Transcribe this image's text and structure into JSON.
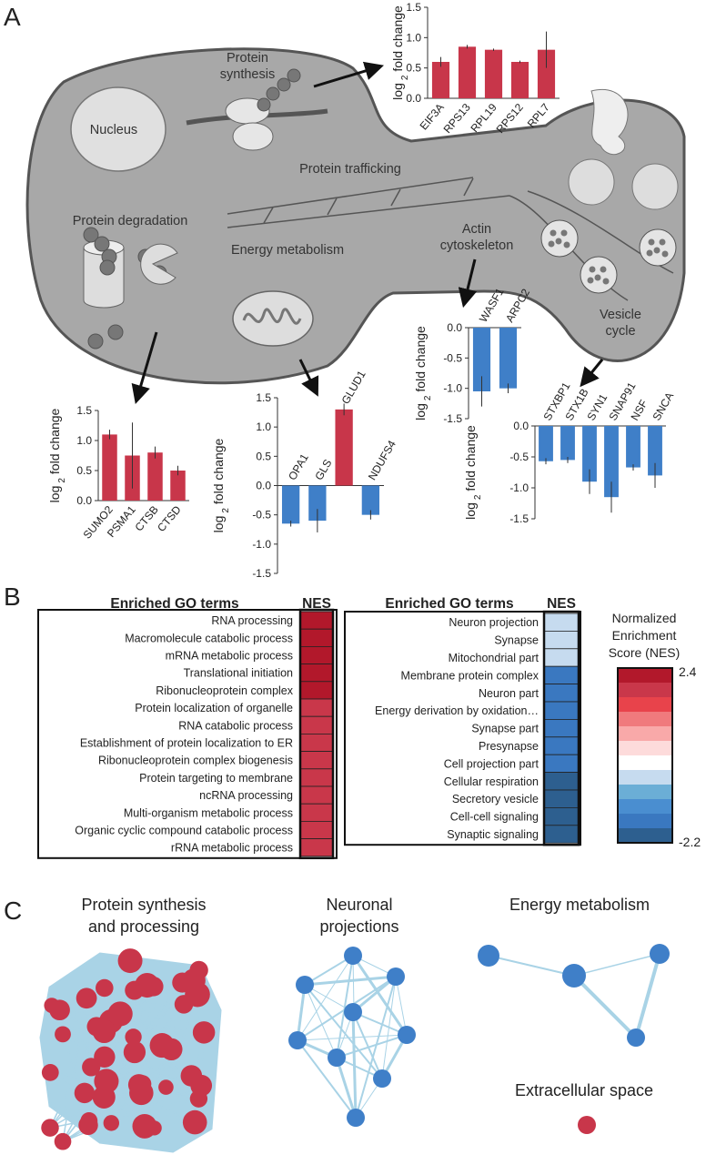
{
  "panel_labels": [
    "A",
    "B",
    "C"
  ],
  "diagram": {
    "nucleus": [
      "Nucleus"
    ],
    "protein_synthesis": [
      "Protein",
      "synthesis"
    ],
    "protein_trafficking": [
      "Protein trafficking"
    ],
    "protein_degradation": [
      "Protein degradation"
    ],
    "energy_metabolism": [
      "Energy metabolism"
    ],
    "actin_cytoskeleton": [
      "Actin",
      "cytoskeleton"
    ],
    "vesicle_cycle": [
      "Vesicle",
      "cycle"
    ]
  },
  "chart_data": [
    {
      "type": "bar",
      "categories": [
        "EIF3A",
        "RPS13",
        "RPL19",
        "RPS12",
        "RPL7"
      ],
      "values": [
        0.6,
        0.85,
        0.8,
        0.6,
        0.8
      ],
      "errors": [
        0.08,
        0.03,
        0.02,
        0.02,
        0.3
      ],
      "bar_colors": {
        "positive": "#c8364a",
        "negative": "#3f7fc8"
      },
      "ylim": [
        0,
        1.5
      ],
      "yticks": [
        {
          "value": 0,
          "label": "0.0"
        },
        0.5,
        {
          "value": 1,
          "label": "1.0"
        },
        1.5
      ],
      "y_label": [
        "log",
        "2",
        "fold change"
      ]
    },
    {
      "type": "bar",
      "categories": [
        "SUMO2",
        "PSMA1",
        "CTSB",
        "CTSD"
      ],
      "values": [
        1.1,
        0.75,
        0.8,
        0.5
      ],
      "errors": [
        0.08,
        0.55,
        0.1,
        0.08
      ],
      "bar_colors": {
        "positive": "#c8364a",
        "negative": "#3f7fc8"
      },
      "ylim": [
        0,
        1.5
      ],
      "yticks": [
        {
          "value": 0,
          "label": "0.0"
        },
        0.5,
        {
          "value": 1,
          "label": "1.0"
        },
        1.5
      ],
      "y_label": [
        "log",
        "2",
        "fold change"
      ]
    },
    {
      "type": "bar",
      "categories": [
        "OPA1",
        "GLS",
        "GLUD1",
        "NDUFS4"
      ],
      "values": [
        -0.65,
        -0.6,
        1.3,
        -0.5
      ],
      "errors": [
        0.05,
        0.2,
        0.1,
        0.08
      ],
      "bar_colors": {
        "positive": "#c8364a",
        "negative": "#3f7fc8"
      },
      "ylim": [
        -1.5,
        1.5
      ],
      "yticks": [
        -1.5,
        {
          "value": -1,
          "label": "-1.0"
        },
        -0.5,
        {
          "value": 0,
          "label": "0.0"
        },
        0.5,
        {
          "value": 1,
          "label": "1.0"
        },
        1.5
      ],
      "y_label": [
        "log",
        "2",
        "fold change"
      ]
    },
    {
      "type": "bar",
      "categories": [
        "WASF1",
        "ARPC2"
      ],
      "values": [
        -1.05,
        -1.0
      ],
      "errors": [
        0.25,
        0.08
      ],
      "bar_colors": {
        "positive": "#c8364a",
        "negative": "#3f7fc8"
      },
      "ylim": [
        -1.5,
        0
      ],
      "yticks": [
        -1.5,
        {
          "value": -1,
          "label": "-1.0"
        },
        -0.5,
        {
          "value": 0,
          "label": "0.0"
        }
      ],
      "y_label": [
        "log",
        "2",
        "fold change"
      ]
    },
    {
      "type": "bar",
      "categories": [
        "STXBP1",
        "STX1B",
        "SYN1",
        "SNAP91",
        "NSF",
        "SNCA"
      ],
      "values": [
        -0.57,
        -0.55,
        -0.9,
        -1.15,
        -0.67,
        -0.8
      ],
      "errors": [
        0.05,
        0.05,
        0.2,
        0.25,
        0.05,
        0.2
      ],
      "bar_colors": {
        "positive": "#c8364a",
        "negative": "#3f7fc8"
      },
      "ylim": [
        -1.5,
        0
      ],
      "yticks": [
        -1.5,
        {
          "value": -1,
          "label": "-1.0"
        },
        -0.5,
        {
          "value": 0,
          "label": "0.0"
        }
      ],
      "y_label": [
        "log",
        "2",
        "fold change"
      ]
    }
  ],
  "go_tables": [
    {
      "header_terms": "Enriched GO terms",
      "header_nes": "NES",
      "terms": [
        "RNA processing",
        "Macromolecule catabolic process",
        "mRNA metabolic process",
        "Translational initiation",
        "Ribonucleoprotein complex",
        "Protein localization of organelle",
        "RNA catabolic process",
        "Establishment of protein localization to ER",
        "Ribonucleoprotein complex biogenesis",
        "Protein targeting to membrane",
        "ncRNA processing",
        "Multi-organism metabolic process",
        "Organic cyclic compound catabolic process",
        "rRNA metabolic process"
      ],
      "nes": [
        2.3,
        2.3,
        2.3,
        2.3,
        2.3,
        2.0,
        2.0,
        2.0,
        2.0,
        2.0,
        2.0,
        2.0,
        2.0,
        2.0
      ]
    },
    {
      "header_terms": "Enriched GO terms",
      "header_nes": "NES",
      "terms": [
        "Neuron projection",
        "Synapse",
        "Mitochondrial part",
        "Membrane protein complex",
        "Neuron part",
        "Energy derivation by oxidation…",
        "Synapse part",
        "Presynapse",
        "Cell projection part",
        "Cellular respiration",
        "Secretory vesicle",
        "Cell-cell signaling",
        "Synaptic signaling"
      ],
      "nes": [
        -0.6,
        -0.6,
        -0.6,
        -1.6,
        -1.6,
        -1.6,
        -1.6,
        -1.6,
        -1.6,
        -2.0,
        -2.0,
        -2.0,
        -2.0
      ]
    }
  ],
  "colorbar": {
    "title_lines": [
      "Normalized",
      "Enrichment",
      "Score (NES)"
    ],
    "range": [
      2.4,
      -2.2
    ],
    "colors": [
      "#b2182b",
      "#c9374a",
      "#e8434b",
      "#f07a7d",
      "#f9a9a9",
      "#fddbdb",
      "#ffffff",
      "#c6dbef",
      "#6baed6",
      "#4a8ed0",
      "#3a78c0",
      "#2d5f8f"
    ]
  },
  "networks": [
    {
      "title_lines": [
        "Protein synthesis",
        "and processing"
      ],
      "color": "#c8364a"
    },
    {
      "title_lines": [
        "Neuronal",
        "projections"
      ],
      "color": "#3f7fc8"
    },
    {
      "title_lines": [
        "Energy metabolism"
      ],
      "color": "#3f7fc8"
    },
    {
      "title_lines": [
        "Extracellular space"
      ],
      "color": "#c8364a"
    }
  ]
}
